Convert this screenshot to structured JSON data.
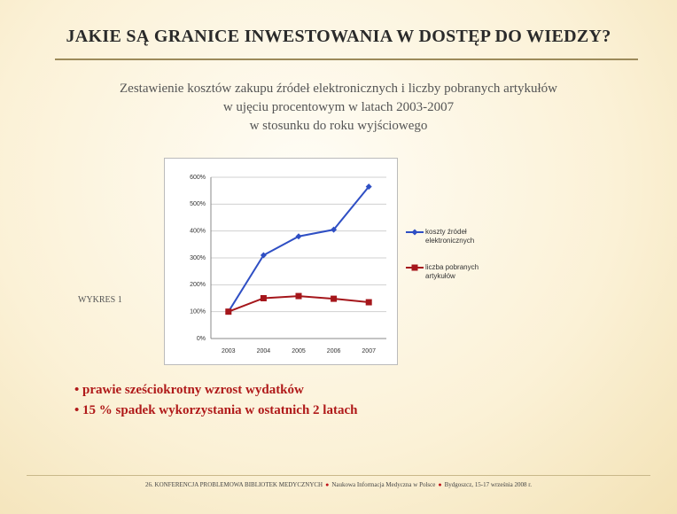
{
  "slide_title": "JAKIE SĄ GRANICE INWESTOWANIA W DOSTĘP DO WIEDZY?",
  "subtitle_lines": [
    "Zestawienie kosztów zakupu źródeł elektronicznych i liczby pobranych artykułów",
    "w ujęciu procentowym w latach 2003-2007",
    "w stosunku do roku wyjściowego"
  ],
  "chart_label": "WYKRES 1",
  "bullets": [
    "prawie sześciokrotny wzrost wydatków",
    "15 % spadek wykorzystania w ostatnich 2 latach"
  ],
  "footer": [
    "26. KONFERENCJA PROBLEMOWA BIBLIOTEK MEDYCZNYCH",
    "Naukowa Informacja Medyczna w Polsce",
    "Bydgoszcz, 15-17 września 2008 r."
  ],
  "chart_data": {
    "type": "line",
    "categories": [
      "2003",
      "2004",
      "2005",
      "2006",
      "2007"
    ],
    "series": [
      {
        "name": "koszty źródeł elektronicznych",
        "color": "#2f4fc4",
        "marker": "diamond",
        "values": [
          100,
          310,
          380,
          405,
          565
        ]
      },
      {
        "name": "liczba pobranych artykułów",
        "color": "#a5161b",
        "marker": "square",
        "values": [
          100,
          150,
          158,
          148,
          135
        ]
      }
    ],
    "ylim": [
      0,
      600
    ],
    "yticks": [
      {
        "value": 0,
        "label": "0%"
      },
      {
        "value": 100,
        "label": "100%"
      },
      {
        "value": 200,
        "label": "200%"
      },
      {
        "value": 300,
        "label": "300%"
      },
      {
        "value": 400,
        "label": "400%"
      },
      {
        "value": 500,
        "label": "500%"
      },
      {
        "value": 600,
        "label": "600%"
      }
    ],
    "grid": true,
    "legend": "right"
  }
}
